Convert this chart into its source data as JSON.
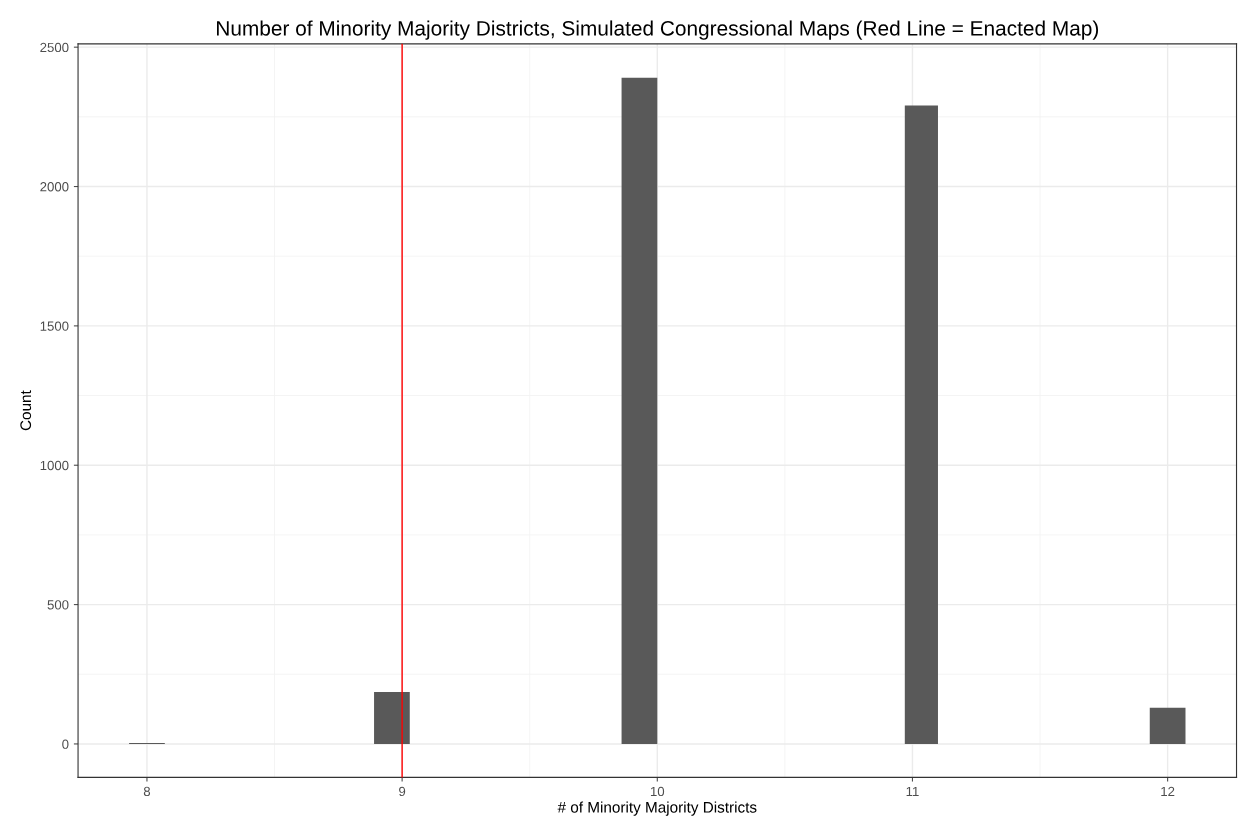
{
  "chart_data": {
    "type": "histogram",
    "title": "Number of Minority Majority Districts, Simulated Congressional Maps (Red Line = Enacted Map)",
    "xlabel": "# of Minority Majority Districts",
    "ylabel": "Count",
    "bins": [
      7.93,
      8.07,
      8.89,
      9.03,
      9.86,
      10.0,
      10.97,
      11.1,
      11.93,
      12.07
    ],
    "values": [
      3,
      0,
      186,
      0,
      2390,
      0,
      2291,
      0,
      130
    ],
    "color": "#595959",
    "xlim": [
      7.73,
      12.27
    ],
    "xticks": [
      8,
      9,
      10,
      11,
      12
    ],
    "ylim": [
      -120,
      2512
    ],
    "yticks": [
      0,
      500,
      1000,
      1500,
      2000,
      2500
    ],
    "ref_lines": [
      {
        "axis": "x",
        "value": 9,
        "color": "#ff0000"
      }
    ],
    "grid": true,
    "legend": false
  }
}
